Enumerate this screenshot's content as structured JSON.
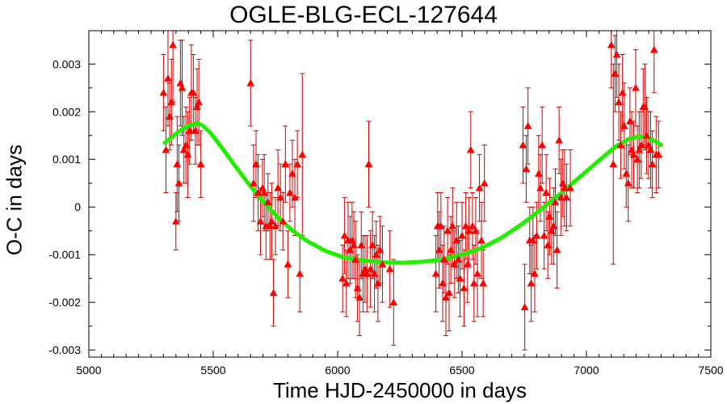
{
  "chart_data": {
    "type": "scatter",
    "title": "OGLE-BLG-ECL-127644",
    "xlabel": "Time HJD-2450000 in days",
    "ylabel": "O-C in days",
    "xlim": [
      5000,
      7500
    ],
    "ylim": [
      -0.00315,
      0.0037
    ],
    "xticks": [
      5000,
      5500,
      6000,
      6500,
      7000,
      7500
    ],
    "xtick_labels": [
      "5000",
      "5500",
      "6000",
      "6500",
      "7000",
      "7500"
    ],
    "yticks": [
      -0.003,
      -0.002,
      -0.001,
      0,
      0.001,
      0.002,
      0.003
    ],
    "ytick_labels": [
      "-0.003",
      "-0.002",
      "-0.001",
      "0",
      "0.001",
      "0.002",
      "0.003"
    ],
    "grid": false,
    "series": [
      {
        "kind": "points_with_error_bars",
        "marker": "triangle",
        "color": "#ff0000",
        "errorbar_color": "#cc0000",
        "points": [
          [
            5300,
            0.0024,
            0.0008
          ],
          [
            5310,
            0.0012,
            0.0009
          ],
          [
            5318,
            0.0027,
            0.001
          ],
          [
            5325,
            0.0019,
            0.0007
          ],
          [
            5332,
            0.0022,
            0.0009
          ],
          [
            5338,
            0.0034,
            0.0012
          ],
          [
            5350,
            -0.0003,
            0.0006
          ],
          [
            5355,
            0.0009,
            0.001
          ],
          [
            5362,
            0.0005,
            0.0008
          ],
          [
            5368,
            0.0026,
            0.0009
          ],
          [
            5375,
            0.0025,
            0.001
          ],
          [
            5382,
            0.0012,
            0.0007
          ],
          [
            5390,
            0.0013,
            0.0008
          ],
          [
            5398,
            0.0011,
            0.0009
          ],
          [
            5405,
            0.0016,
            0.0007
          ],
          [
            5412,
            0.0024,
            0.001
          ],
          [
            5420,
            0.0024,
            0.0008
          ],
          [
            5428,
            0.0016,
            0.0007
          ],
          [
            5435,
            0.0021,
            0.0008
          ],
          [
            5442,
            0.0022,
            0.0009
          ],
          [
            5450,
            0.0009,
            0.0007
          ],
          [
            5650,
            0.0026,
            0.0009
          ],
          [
            5662,
            0.0005,
            0.0008
          ],
          [
            5672,
            0.0009,
            0.0007
          ],
          [
            5680,
            0.0003,
            0.0008
          ],
          [
            5690,
            -0.0003,
            0.0007
          ],
          [
            5698,
            0.0004,
            0.0006
          ],
          [
            5705,
            0.0003,
            0.0008
          ],
          [
            5712,
            -0.0004,
            0.0007
          ],
          [
            5720,
            0.0001,
            0.0006
          ],
          [
            5728,
            -0.0004,
            0.0007
          ],
          [
            5735,
            -0.0003,
            0.0008
          ],
          [
            5742,
            -0.0018,
            0.0007
          ],
          [
            5750,
            -0.0004,
            0.0006
          ],
          [
            5760,
            0.0004,
            0.0008
          ],
          [
            5770,
            0.0002,
            0.0007
          ],
          [
            5780,
            -0.0003,
            0.0006
          ],
          [
            5790,
            0.0009,
            0.0008
          ],
          [
            5800,
            -0.0012,
            0.0007
          ],
          [
            5808,
            0.0003,
            0.0006
          ],
          [
            5818,
            0.0007,
            0.0007
          ],
          [
            5828,
            0.0002,
            0.0008
          ],
          [
            5838,
            0.0009,
            0.0007
          ],
          [
            5848,
            -0.0014,
            0.0008
          ],
          [
            5858,
            0.0011,
            0.0017
          ],
          [
            6020,
            -0.0015,
            0.0007
          ],
          [
            6028,
            -0.0006,
            0.0008
          ],
          [
            6035,
            -0.0016,
            0.0007
          ],
          [
            6042,
            -0.0007,
            0.0008
          ],
          [
            6050,
            -0.0009,
            0.0007
          ],
          [
            6058,
            -0.0007,
            0.0008
          ],
          [
            6065,
            -0.0008,
            0.0007
          ],
          [
            6072,
            -0.0011,
            0.0008
          ],
          [
            6080,
            -0.0017,
            0.0007
          ],
          [
            6088,
            -0.0019,
            0.0008
          ],
          [
            6095,
            -0.0008,
            0.0007
          ],
          [
            6102,
            -0.0014,
            0.0008
          ],
          [
            6110,
            -0.0013,
            0.0007
          ],
          [
            6118,
            -0.0014,
            0.0008
          ],
          [
            6125,
            0.0009,
            0.0009
          ],
          [
            6132,
            -0.0013,
            0.0008
          ],
          [
            6140,
            -0.0008,
            0.0007
          ],
          [
            6148,
            -0.0014,
            0.0008
          ],
          [
            6155,
            -0.001,
            0.0007
          ],
          [
            6162,
            -0.0016,
            0.0008
          ],
          [
            6170,
            -0.0009,
            0.0007
          ],
          [
            6180,
            -0.0012,
            0.0008
          ],
          [
            6210,
            -0.0013,
            0.0008
          ],
          [
            6225,
            -0.002,
            0.0009
          ],
          [
            6395,
            -0.0014,
            0.0008
          ],
          [
            6402,
            -0.0004,
            0.0007
          ],
          [
            6408,
            -0.0009,
            0.0008
          ],
          [
            6415,
            -0.0004,
            0.0007
          ],
          [
            6422,
            -0.0016,
            0.0008
          ],
          [
            6428,
            -0.0011,
            0.0007
          ],
          [
            6435,
            -0.0019,
            0.0008
          ],
          [
            6442,
            -0.0005,
            0.0007
          ],
          [
            6448,
            -0.0018,
            0.0008
          ],
          [
            6455,
            -0.0009,
            0.0007
          ],
          [
            6462,
            -0.0004,
            0.0008
          ],
          [
            6470,
            -0.0012,
            0.0007
          ],
          [
            6478,
            -0.0007,
            0.0008
          ],
          [
            6485,
            -0.0011,
            0.0007
          ],
          [
            6492,
            -0.0015,
            0.0008
          ],
          [
            6500,
            -0.0006,
            0.0007
          ],
          [
            6508,
            -0.0017,
            0.0008
          ],
          [
            6515,
            -0.0004,
            0.0007
          ],
          [
            6522,
            -0.0012,
            0.0008
          ],
          [
            6528,
            -0.0005,
            0.0007
          ],
          [
            6535,
            0.0012,
            0.0008
          ],
          [
            6542,
            -0.0004,
            0.0007
          ],
          [
            6548,
            -0.0016,
            0.0008
          ],
          [
            6555,
            -0.0005,
            0.0007
          ],
          [
            6562,
            -0.0014,
            0.0009
          ],
          [
            6570,
            0.0004,
            0.0007
          ],
          [
            6578,
            -0.0007,
            0.0008
          ],
          [
            6585,
            -0.0016,
            0.0007
          ],
          [
            6590,
            0.0005,
            0.0008
          ],
          [
            6745,
            0.0013,
            0.0008
          ],
          [
            6752,
            -0.0021,
            0.0009
          ],
          [
            6758,
            0.0008,
            0.0007
          ],
          [
            6765,
            0.0017,
            0.0008
          ],
          [
            6772,
            -0.0007,
            0.0007
          ],
          [
            6778,
            -0.0016,
            0.0008
          ],
          [
            6785,
            -0.0007,
            0.0007
          ],
          [
            6792,
            -0.0014,
            0.0008
          ],
          [
            6800,
            -0.0006,
            0.0007
          ],
          [
            6808,
            0.0007,
            0.0008
          ],
          [
            6815,
            0.0004,
            0.0007
          ],
          [
            6822,
            0.0013,
            0.0008
          ],
          [
            6830,
            -0.0006,
            0.0007
          ],
          [
            6838,
            0.0003,
            0.0008
          ],
          [
            6845,
            -0.0008,
            0.0007
          ],
          [
            6852,
            -0.0002,
            0.0008
          ],
          [
            6860,
            -0.0005,
            0.0007
          ],
          [
            6868,
            -0.0004,
            0.0008
          ],
          [
            6875,
            0.0001,
            0.0007
          ],
          [
            6882,
            -0.0009,
            0.0008
          ],
          [
            6890,
            0.0014,
            0.0007
          ],
          [
            6898,
            0.0002,
            0.0008
          ],
          [
            6905,
            0.0005,
            0.0007
          ],
          [
            6912,
            0.0004,
            0.0008
          ],
          [
            6920,
            0.0002,
            0.0007
          ],
          [
            6935,
            0.0004,
            0.0008
          ],
          [
            7100,
            0.0034,
            0.0009
          ],
          [
            7108,
            0.0009,
            0.0021
          ],
          [
            7115,
            0.0028,
            0.0008
          ],
          [
            7122,
            0.0032,
            0.0009
          ],
          [
            7130,
            0.0022,
            0.0008
          ],
          [
            7138,
            0.0013,
            0.0007
          ],
          [
            7145,
            0.0024,
            0.0008
          ],
          [
            7152,
            0.0017,
            0.0009
          ],
          [
            7160,
            0.0007,
            0.0007
          ],
          [
            7168,
            0.0005,
            0.0008
          ],
          [
            7175,
            0.0018,
            0.0007
          ],
          [
            7182,
            0.0012,
            0.0008
          ],
          [
            7190,
            0.0011,
            0.0007
          ],
          [
            7198,
            0.0025,
            0.0008
          ],
          [
            7205,
            0.001,
            0.0007
          ],
          [
            7212,
            0.0012,
            0.0008
          ],
          [
            7220,
            0.0013,
            0.0007
          ],
          [
            7228,
            0.0021,
            0.0008
          ],
          [
            7235,
            0.0021,
            0.0009
          ],
          [
            7242,
            0.0015,
            0.0008
          ],
          [
            7250,
            0.0013,
            0.0007
          ],
          [
            7258,
            0.0012,
            0.0008
          ],
          [
            7265,
            0.0009,
            0.0007
          ],
          [
            7272,
            0.0033,
            0.0009
          ],
          [
            7280,
            0.0011,
            0.0008
          ],
          [
            7290,
            0.0011,
            0.0007
          ]
        ]
      },
      {
        "kind": "fit_curve",
        "color": "#22ee00",
        "points": [
          [
            5305,
            0.00135
          ],
          [
            5330,
            0.00145
          ],
          [
            5360,
            0.00158
          ],
          [
            5390,
            0.00168
          ],
          [
            5420,
            0.00174
          ],
          [
            5440,
            0.00176
          ],
          [
            5460,
            0.0017
          ],
          [
            5490,
            0.00155
          ],
          [
            5530,
            0.00128
          ],
          [
            5580,
            0.00092
          ],
          [
            5640,
            0.0005
          ],
          [
            5700,
            0.00012
          ],
          [
            5760,
            -0.00022
          ],
          [
            5820,
            -0.0005
          ],
          [
            5880,
            -0.00072
          ],
          [
            5950,
            -0.00092
          ],
          [
            6020,
            -0.00105
          ],
          [
            6100,
            -0.00112
          ],
          [
            6180,
            -0.00116
          ],
          [
            6260,
            -0.00117
          ],
          [
            6340,
            -0.00115
          ],
          [
            6420,
            -0.0011
          ],
          [
            6500,
            -0.001
          ],
          [
            6580,
            -0.00086
          ],
          [
            6660,
            -0.00064
          ],
          [
            6740,
            -0.00036
          ],
          [
            6820,
            -4e-05
          ],
          [
            6900,
            0.0003
          ],
          [
            6980,
            0.00066
          ],
          [
            7060,
            0.00102
          ],
          [
            7120,
            0.00128
          ],
          [
            7170,
            0.00143
          ],
          [
            7210,
            0.00148
          ],
          [
            7240,
            0.00147
          ],
          [
            7270,
            0.0014
          ],
          [
            7300,
            0.0013
          ]
        ]
      }
    ]
  }
}
